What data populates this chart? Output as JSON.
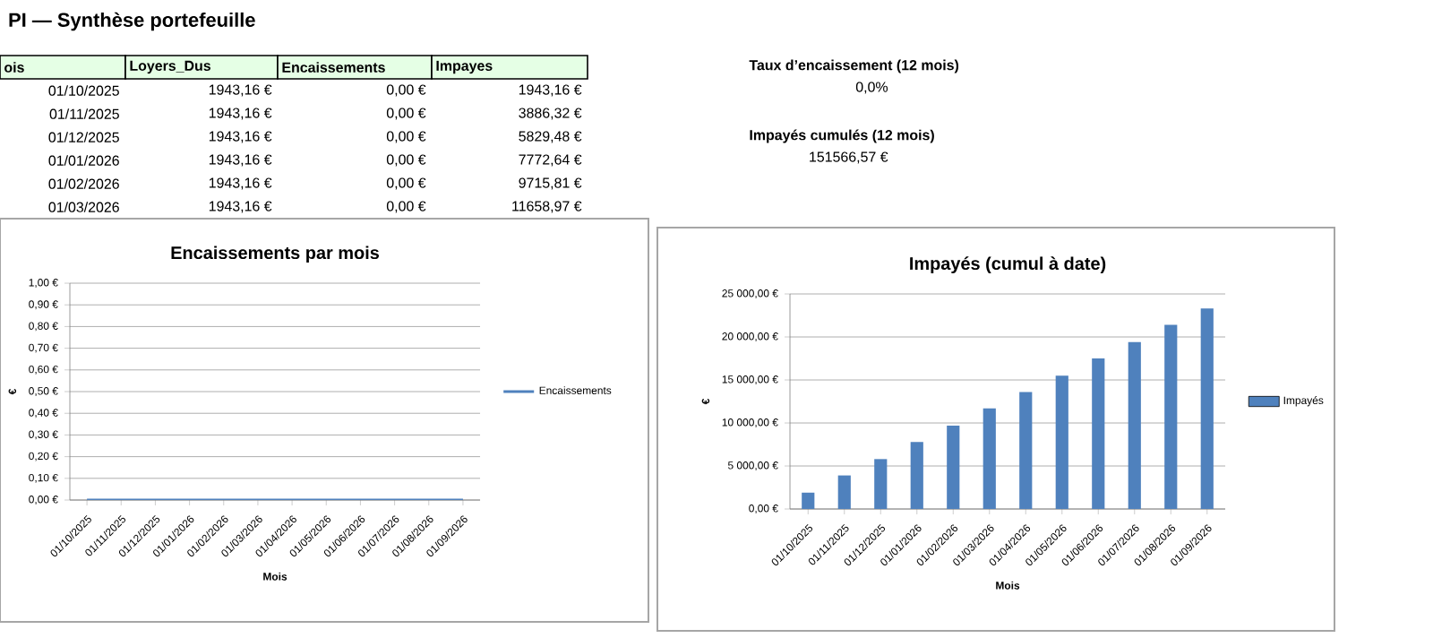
{
  "chart_data": [
    {
      "type": "other",
      "title": "PI — Synthèse portefeuille",
      "annotations": [
        "ois",
        "Loyers_Dus",
        "Encaissements",
        "Impayes",
        "01/10/2025",
        "1943,16 €",
        "0,00 €",
        "1943,16 €",
        "01/11/2025",
        "1943,16 €",
        "0,00 €",
        "3886,32 €",
        "01/12/2025",
        "1943,16 €",
        "0,00 €",
        "5829,48 €",
        "01/01/2026",
        "1943,16 €",
        "0,00 €",
        "7772,64 €",
        "01/02/2026",
        "1943,16 €",
        "0,00 €",
        "9715,81 €",
        "01/03/2026",
        "1943,16 €",
        "0,00 €",
        "11658,97 €"
      ]
    },
    {
      "type": "other",
      "annotations": [
        "Taux d’encaissement (12 mois)",
        "0,0%",
        "Impayés cumulés (12 mois)",
        "151566,57 €"
      ]
    },
    {
      "type": "line",
      "title": "Encaissements par mois",
      "xlabel": "Mois",
      "ylabel": "€",
      "categories": [
        "01/10/2025",
        "01/11/2025",
        "01/12/2025",
        "01/01/2026",
        "01/02/2026",
        "01/03/2026",
        "01/04/2026",
        "01/05/2026",
        "01/06/2026",
        "01/07/2026",
        "01/08/2026",
        "01/09/2026"
      ],
      "series": [
        {
          "name": "Encaissements",
          "color": "#4f81bd",
          "values": [
            0,
            0,
            0,
            0,
            0,
            0,
            0,
            0,
            0,
            0,
            0,
            0
          ]
        }
      ],
      "ylim": [
        0,
        1
      ],
      "yticks": [
        {
          "value": 0,
          "label": "0,00 €"
        },
        {
          "value": 0.1,
          "label": "0,10 €"
        },
        {
          "value": 0.2,
          "label": "0,20 €"
        },
        {
          "value": 0.3,
          "label": "0,30 €"
        },
        {
          "value": 0.4,
          "label": "0,40 €"
        },
        {
          "value": 0.5,
          "label": "0,50 €"
        },
        {
          "value": 0.6,
          "label": "0,60 €"
        },
        {
          "value": 0.7,
          "label": "0,70 €"
        },
        {
          "value": 0.8,
          "label": "0,80 €"
        },
        {
          "value": 0.9,
          "label": "0,90 €"
        },
        {
          "value": 1,
          "label": "1,00 €"
        }
      ],
      "grid": "y",
      "legend": "right",
      "marker": "none",
      "line_style": "solid"
    },
    {
      "type": "bar",
      "title": "Impayés (cumul à date)",
      "xlabel": "Mois",
      "ylabel": "€",
      "categories": [
        "01/10/2025",
        "01/11/2025",
        "01/12/2025",
        "01/01/2026",
        "01/02/2026",
        "01/03/2026",
        "01/04/2026",
        "01/05/2026",
        "01/06/2026",
        "01/07/2026",
        "01/08/2026",
        "01/09/2026"
      ],
      "series": [
        {
          "name": "Impayés",
          "color": "#4f81bd",
          "values": [
            1900,
            3900,
            5800,
            7800,
            9700,
            11700,
            13600,
            15500,
            17500,
            19400,
            21400,
            23300
          ]
        }
      ],
      "ylim": [
        0,
        25000
      ],
      "yticks": [
        {
          "value": 0,
          "label": "0,00 €"
        },
        {
          "value": 5000,
          "label": "5 000,00 €"
        },
        {
          "value": 10000,
          "label": "10 000,00 €"
        },
        {
          "value": 15000,
          "label": "15 000,00 €"
        },
        {
          "value": 20000,
          "label": "20 000,00 €"
        },
        {
          "value": 25000,
          "label": "25 000,00 €"
        }
      ],
      "grid": "y",
      "legend": "right"
    }
  ]
}
